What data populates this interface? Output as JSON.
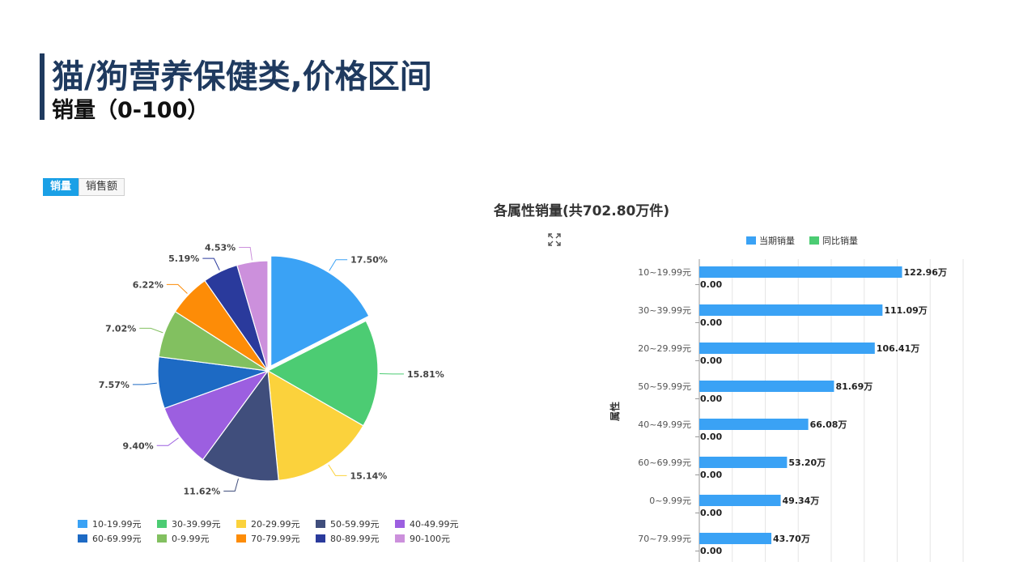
{
  "header": {
    "title": "猫/狗营养保健类,价格区间",
    "subtitle": "销量（0-100）"
  },
  "tabs": [
    {
      "label": "销量",
      "active": true
    },
    {
      "label": "销售额",
      "active": false
    }
  ],
  "chart_data": [
    {
      "type": "pie",
      "categories": [
        "10-19.99元",
        "30-39.99元",
        "20-29.99元",
        "50-59.99元",
        "40-49.99元",
        "60-69.99元",
        "0-9.99元",
        "70-79.99元",
        "80-89.99元",
        "90-100元"
      ],
      "values": [
        17.5,
        15.81,
        15.14,
        11.62,
        9.4,
        7.57,
        7.02,
        6.22,
        5.19,
        4.53
      ],
      "labels": [
        "17.50%",
        "15.81%",
        "15.14%",
        "11.62%",
        "9.40%",
        "7.57%",
        "7.02%",
        "6.22%",
        "5.19%",
        "4.53%"
      ],
      "colors": [
        "#3aa2f5",
        "#4ccc73",
        "#fbd23c",
        "#404e7c",
        "#9c5fe0",
        "#1d6ac4",
        "#82c060",
        "#fd8c07",
        "#2a3a9c",
        "#cc90dc"
      ],
      "legend_position": "bottom",
      "exploded_slice": "10-19.99元"
    },
    {
      "type": "bar",
      "orientation": "horizontal",
      "title": "各属性销量(共702.80万件)",
      "ylabel": "属性",
      "categories": [
        "10~19.99元",
        "30~39.99元",
        "20~29.99元",
        "50~59.99元",
        "40~49.99元",
        "60~69.99元",
        "0~9.99元",
        "70~79.99元"
      ],
      "series": [
        {
          "name": "当期销量",
          "color": "#3aa2f5",
          "values": [
            122.96,
            111.09,
            106.41,
            81.69,
            66.08,
            53.2,
            49.34,
            43.7
          ],
          "labels": [
            "122.96万",
            "111.09万",
            "106.41万",
            "81.69万",
            "66.08万",
            "53.20万",
            "49.34万",
            "43.70万"
          ]
        },
        {
          "name": "同比销量",
          "color": "#4ccc73",
          "values": [
            0,
            0,
            0,
            0,
            0,
            0,
            0,
            0
          ],
          "labels": [
            "0.00",
            "0.00",
            "0.00",
            "0.00",
            "0.00",
            "0.00",
            "0.00",
            "0.00"
          ]
        }
      ],
      "xlim": [
        0,
        160
      ],
      "grid": true,
      "legend_position": "top"
    }
  ]
}
